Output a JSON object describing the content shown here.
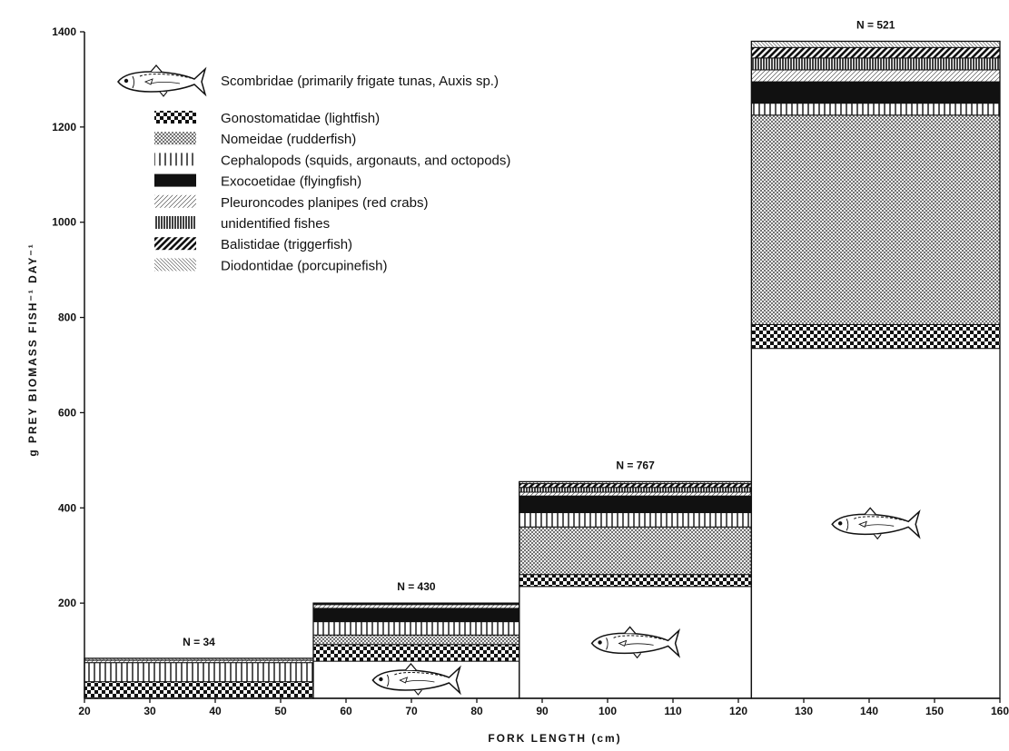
{
  "chart_data": {
    "type": "bar",
    "xlabel": "FORK LENGTH (cm)",
    "ylabel": "g PREY BIOMASS FISH⁻¹ DAY⁻¹",
    "xlim": [
      20,
      160
    ],
    "ylim": [
      0,
      1400
    ],
    "xticks": [
      20,
      30,
      40,
      50,
      60,
      70,
      80,
      90,
      100,
      110,
      120,
      130,
      140,
      150,
      160
    ],
    "yticks": [
      200,
      400,
      600,
      800,
      1000,
      1200,
      1400
    ],
    "legend_position": "top-left",
    "categories": [
      {
        "n_label": "N = 34",
        "x_start": 20,
        "x_end": 55
      },
      {
        "n_label": "N = 430",
        "x_start": 55,
        "x_end": 86.5
      },
      {
        "n_label": "N = 767",
        "x_start": 86.5,
        "x_end": 122
      },
      {
        "n_label": "N = 521",
        "x_start": 122,
        "x_end": 160
      }
    ],
    "series": [
      {
        "name": "Scombridae (primarily frigate tunas, Auxis sp.)",
        "pattern": "fish",
        "values": [
          0,
          78,
          235,
          735
        ]
      },
      {
        "name": "Gonostomatidae (lightfish)",
        "pattern": "checker",
        "values": [
          35,
          35,
          25,
          50
        ]
      },
      {
        "name": "Nomeidae (rudderfish)",
        "pattern": "crosshatch",
        "values": [
          0,
          20,
          100,
          440
        ]
      },
      {
        "name": "Cephalopods (squids, argonauts, and octopods)",
        "pattern": "vlines",
        "values": [
          40,
          28,
          30,
          25
        ]
      },
      {
        "name": "Exocoetidae (flyingfish)",
        "pattern": "solid",
        "values": [
          0,
          28,
          35,
          45
        ]
      },
      {
        "name": "Pleuroncodes planipes (red crabs)",
        "pattern": "thin-diag",
        "values": [
          5,
          8,
          8,
          25
        ]
      },
      {
        "name": "unidentified fishes",
        "pattern": "dense-vlines",
        "values": [
          0,
          2,
          10,
          25
        ]
      },
      {
        "name": "Balistidae (triggerfish)",
        "pattern": "thick-diag",
        "values": [
          0,
          0,
          8,
          22
        ]
      },
      {
        "name": "Diodontidae (porcupinefish)",
        "pattern": "back-diag",
        "values": [
          4,
          1,
          4,
          13
        ]
      }
    ]
  }
}
